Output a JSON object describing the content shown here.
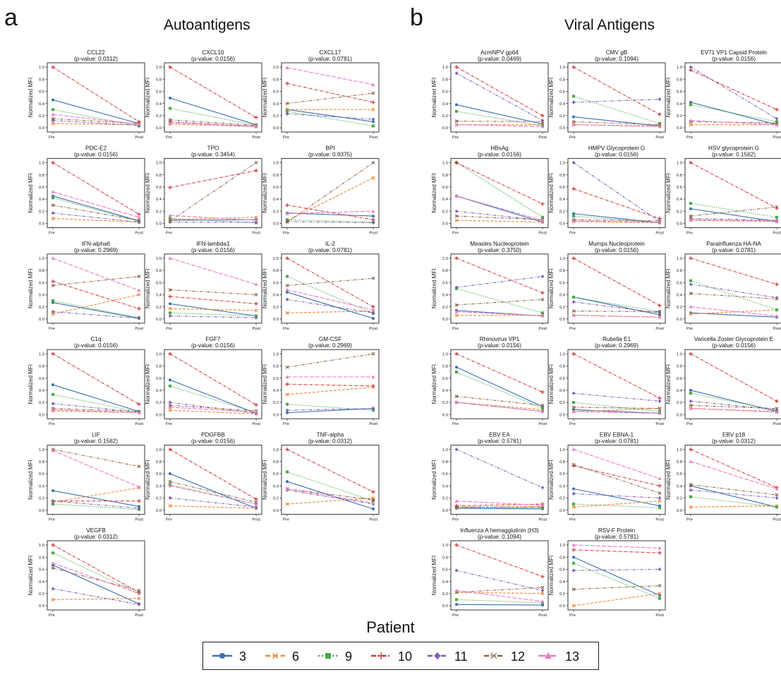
{
  "panels": [
    {
      "letter": "a",
      "title": "Autoantigens"
    },
    {
      "letter": "b",
      "title": "Viral Antigens"
    }
  ],
  "legend": {
    "title": "Patient",
    "entries": [
      {
        "label": "3",
        "color": "#3a6fb0",
        "dash": "solid",
        "marker": "circle"
      },
      {
        "label": "6",
        "color": "#f08a3c",
        "dash": "dashed",
        "marker": "x"
      },
      {
        "label": "9",
        "color": "#48a84a",
        "dash": "dotted",
        "marker": "square"
      },
      {
        "label": "10",
        "color": "#d0383a",
        "dash": "dashdot",
        "marker": "plus"
      },
      {
        "label": "11",
        "color": "#7b5db0",
        "dash": "dashdotdot",
        "marker": "diamond"
      },
      {
        "label": "12",
        "color": "#8a6548",
        "dash": "dashdotdot",
        "marker": "x"
      },
      {
        "label": "13",
        "color": "#e77cc3",
        "dash": "longdash",
        "marker": "triangle"
      }
    ]
  },
  "axis": {
    "ylabel": "Normalized MFI",
    "xticks": [
      "Pre",
      "Post"
    ],
    "yticks": [
      "0.0",
      "0.2",
      "0.4",
      "0.6",
      "0.8",
      "1.0"
    ],
    "ylim": [
      0,
      1
    ]
  },
  "chart_data": [
    {
      "type": "line",
      "group": "Autoantigens",
      "antigen": "CCL22",
      "pvalue": "(p-value: 0.0312)",
      "series": {
        "3": [
          0.46,
          0.07
        ],
        "6": [
          0.07,
          0.05
        ],
        "9": [
          0.3,
          0.03
        ],
        "10": [
          1.0,
          0.1
        ],
        "11": [
          0.12,
          0.04
        ],
        "12": [
          0.15,
          0.07
        ],
        "13": [
          0.22,
          0.06
        ]
      }
    },
    {
      "type": "line",
      "group": "Autoantigens",
      "antigen": "CXCL10",
      "pvalue": "(p-value: 0.0156)",
      "series": {
        "3": [
          0.49,
          0.05
        ],
        "6": [
          0.06,
          0.02
        ],
        "9": [
          0.32,
          0.04
        ],
        "10": [
          1.0,
          0.17
        ],
        "11": [
          0.1,
          0.02
        ],
        "12": [
          0.13,
          0.04
        ],
        "13": [
          0.08,
          0.03
        ]
      }
    },
    {
      "type": "line",
      "group": "Autoantigens",
      "antigen": "CXCL17",
      "pvalue": "(p-value: 0.0781)",
      "series": {
        "3": [
          0.3,
          0.1
        ],
        "6": [
          0.3,
          0.3
        ],
        "9": [
          0.27,
          0.03
        ],
        "10": [
          0.73,
          0.42
        ],
        "11": [
          0.23,
          0.14
        ],
        "12": [
          0.4,
          0.57
        ],
        "13": [
          0.99,
          0.71
        ]
      }
    },
    {
      "type": "line",
      "group": "Autoantigens",
      "antigen": "PDC-E2",
      "pvalue": "(p-value: 0.0156)",
      "series": {
        "3": [
          0.45,
          0.04
        ],
        "6": [
          0.08,
          0.02
        ],
        "9": [
          0.42,
          0.03
        ],
        "10": [
          1.0,
          0.15
        ],
        "11": [
          0.17,
          0.02
        ],
        "12": [
          0.3,
          0.05
        ],
        "13": [
          0.52,
          0.1
        ]
      }
    },
    {
      "type": "line",
      "group": "Autoantigens",
      "antigen": "TPO",
      "pvalue": "(p-value: 0.3454)",
      "series": {
        "3": [
          0.05,
          0.06
        ],
        "6": [
          0.06,
          0.1
        ],
        "9": [
          0.08,
          0.01
        ],
        "10": [
          0.59,
          0.87
        ],
        "11": [
          0.02,
          0.02
        ],
        "12": [
          0.04,
          1.0
        ],
        "13": [
          0.13,
          0.05
        ]
      }
    },
    {
      "type": "line",
      "group": "Autoantigens",
      "antigen": "BPI",
      "pvalue": "(p-value: 0.9375)",
      "series": {
        "3": [
          0.17,
          0.12
        ],
        "6": [
          0.04,
          0.75
        ],
        "9": [
          0.06,
          0.02
        ],
        "10": [
          0.3,
          0.06
        ],
        "11": [
          0.03,
          0.01
        ],
        "12": [
          0.02,
          1.0
        ],
        "13": [
          0.16,
          0.2
        ]
      }
    },
    {
      "type": "line",
      "group": "Autoantigens",
      "antigen": "IFN-alpha6",
      "pvalue": "(p-value: 0.2969)",
      "series": {
        "3": [
          0.27,
          0.01
        ],
        "6": [
          0.08,
          0.4
        ],
        "9": [
          0.3,
          0.02
        ],
        "10": [
          0.62,
          0.17
        ],
        "11": [
          0.12,
          0.01
        ],
        "12": [
          0.55,
          0.7
        ],
        "13": [
          1.0,
          0.47
        ]
      }
    },
    {
      "type": "line",
      "group": "Autoantigens",
      "antigen": "IFN-lambda1",
      "pvalue": "(p-value: 0.0156)",
      "series": {
        "3": [
          0.25,
          0.05
        ],
        "6": [
          0.17,
          0.14
        ],
        "9": [
          0.1,
          0.05
        ],
        "10": [
          0.37,
          0.25
        ],
        "11": [
          0.05,
          0.02
        ],
        "12": [
          0.48,
          0.4
        ],
        "13": [
          1.0,
          0.57
        ]
      }
    },
    {
      "type": "line",
      "group": "Autoantigens",
      "antigen": "IL-2",
      "pvalue": "(p-value: 0.0781)",
      "series": {
        "3": [
          0.44,
          0.01
        ],
        "6": [
          0.1,
          0.13
        ],
        "9": [
          0.7,
          0.09
        ],
        "10": [
          1.0,
          0.2
        ],
        "11": [
          0.32,
          0.1
        ],
        "12": [
          0.55,
          0.67
        ],
        "13": [
          0.48,
          0.15
        ]
      }
    },
    {
      "type": "line",
      "group": "Autoantigens",
      "antigen": "C1q",
      "pvalue": "(p-value: 0.0156)",
      "series": {
        "3": [
          0.49,
          0.05
        ],
        "6": [
          0.06,
          0.03
        ],
        "9": [
          0.33,
          0.04
        ],
        "10": [
          1.0,
          0.17
        ],
        "11": [
          0.18,
          0.04
        ],
        "12": [
          0.1,
          0.05
        ],
        "13": [
          0.08,
          0.03
        ]
      }
    },
    {
      "type": "line",
      "group": "Autoantigens",
      "antigen": "FGF7",
      "pvalue": "(p-value: 0.0156)",
      "series": {
        "3": [
          0.57,
          0.02
        ],
        "6": [
          0.07,
          0.01
        ],
        "9": [
          0.47,
          0.03
        ],
        "10": [
          1.0,
          0.16
        ],
        "11": [
          0.2,
          0.02
        ],
        "12": [
          0.15,
          0.06
        ],
        "13": [
          0.12,
          0.04
        ]
      }
    },
    {
      "type": "line",
      "group": "Autoantigens",
      "antigen": "GM-CSF",
      "pvalue": "(p-value: 0.2969)",
      "series": {
        "3": [
          0.03,
          0.1
        ],
        "6": [
          0.33,
          0.45
        ],
        "9": [
          0.17,
          0.07
        ],
        "10": [
          0.5,
          0.47
        ],
        "11": [
          0.07,
          0.1
        ],
        "12": [
          0.78,
          1.0
        ],
        "13": [
          0.62,
          0.62
        ]
      }
    },
    {
      "type": "line",
      "group": "Autoantigens",
      "antigen": "LIF",
      "pvalue": "(p-value: 0.1562)",
      "series": {
        "3": [
          0.32,
          0.06
        ],
        "6": [
          0.13,
          0.37
        ],
        "9": [
          0.1,
          0.01
        ],
        "10": [
          0.15,
          0.15
        ],
        "11": [
          0.15,
          0.03
        ],
        "12": [
          1.0,
          0.72
        ],
        "13": [
          0.98,
          0.38
        ]
      }
    },
    {
      "type": "line",
      "group": "Autoantigens",
      "antigen": "PDGFBB",
      "pvalue": "(p-value: 0.0156)",
      "series": {
        "3": [
          0.6,
          0.03
        ],
        "6": [
          0.07,
          0.03
        ],
        "9": [
          0.42,
          0.1
        ],
        "10": [
          1.0,
          0.18
        ],
        "11": [
          0.2,
          0.05
        ],
        "12": [
          0.47,
          0.13
        ],
        "13": [
          0.4,
          0.1
        ]
      }
    },
    {
      "type": "line",
      "group": "Autoantigens",
      "antigen": "TNF-alpha",
      "pvalue": "(p-value: 0.0312)",
      "series": {
        "3": [
          0.47,
          0.02
        ],
        "6": [
          0.1,
          0.2
        ],
        "9": [
          0.63,
          0.15
        ],
        "10": [
          1.0,
          0.3
        ],
        "11": [
          0.33,
          0.1
        ],
        "12": [
          0.35,
          0.17
        ],
        "13": [
          0.35,
          0.12
        ]
      }
    },
    {
      "type": "line",
      "group": "Autoantigens",
      "antigen": "VEGFB",
      "pvalue": "(p-value: 0.0312)",
      "series": {
        "3": [
          0.67,
          0.03
        ],
        "6": [
          0.1,
          0.12
        ],
        "9": [
          0.87,
          0.2
        ],
        "10": [
          1.0,
          0.22
        ],
        "11": [
          0.28,
          0.02
        ],
        "12": [
          0.62,
          0.25
        ],
        "13": [
          0.7,
          0.2
        ]
      }
    },
    {
      "type": "line",
      "group": "Viral Antigens",
      "antigen": "AcmNPV gp64",
      "pvalue": "(p-value: 0.0469)",
      "series": {
        "3": [
          0.38,
          0.06
        ],
        "6": [
          0.05,
          0.05
        ],
        "9": [
          0.27,
          0.03
        ],
        "10": [
          1.0,
          0.2
        ],
        "11": [
          0.9,
          0.12
        ],
        "12": [
          0.11,
          0.1
        ],
        "13": [
          0.05,
          0.02
        ]
      }
    },
    {
      "type": "line",
      "group": "Viral Antigens",
      "antigen": "CMV gB",
      "pvalue": "(p-value: 0.1094)",
      "series": {
        "3": [
          0.18,
          0.03
        ],
        "6": [
          0.05,
          0.03
        ],
        "9": [
          0.52,
          0.07
        ],
        "10": [
          1.0,
          0.22
        ],
        "11": [
          0.42,
          0.47
        ],
        "12": [
          0.1,
          0.05
        ],
        "13": [
          0.05,
          0.02
        ]
      }
    },
    {
      "type": "line",
      "group": "Viral Antigens",
      "antigen": "EV71 VP1 Capsid Protein",
      "pvalue": "(p-value: 0.0156)",
      "series": {
        "3": [
          0.42,
          0.05
        ],
        "6": [
          0.05,
          0.05
        ],
        "9": [
          0.38,
          0.1
        ],
        "10": [
          0.95,
          0.3
        ],
        "11": [
          1.0,
          0.15
        ],
        "12": [
          0.1,
          0.08
        ],
        "13": [
          0.12,
          0.05
        ]
      }
    },
    {
      "type": "line",
      "group": "Viral Antigens",
      "antigen": "HBsAg",
      "pvalue": "(p-value: 0.0156)",
      "series": {
        "3": [
          0.45,
          0.02
        ],
        "6": [
          0.05,
          0.02
        ],
        "9": [
          1.0,
          0.1
        ],
        "10": [
          1.0,
          0.32
        ],
        "11": [
          0.2,
          0.05
        ],
        "12": [
          0.12,
          0.06
        ],
        "13": [
          0.45,
          0.05
        ]
      }
    },
    {
      "type": "line",
      "group": "Viral Antigens",
      "antigen": "HMPV Glycoprotein G",
      "pvalue": "(p-value: 0.0156)",
      "series": {
        "3": [
          0.16,
          0.01
        ],
        "6": [
          0.03,
          0.01
        ],
        "9": [
          0.12,
          0.01
        ],
        "10": [
          0.57,
          0.08
        ],
        "11": [
          1.0,
          0.03
        ],
        "12": [
          0.06,
          0.04
        ],
        "13": [
          0.04,
          0.02
        ]
      }
    },
    {
      "type": "line",
      "group": "Viral Antigens",
      "antigen": "HSV glycoprotein G",
      "pvalue": "(p-value: 0.1562)",
      "series": {
        "3": [
          0.24,
          0.03
        ],
        "6": [
          0.05,
          0.03
        ],
        "9": [
          0.33,
          0.1
        ],
        "10": [
          1.0,
          0.25
        ],
        "11": [
          0.08,
          0.05
        ],
        "12": [
          0.12,
          0.27
        ],
        "13": [
          0.06,
          0.04
        ]
      }
    },
    {
      "type": "line",
      "group": "Viral Antigens",
      "antigen": "Measles Nucleoprotein",
      "pvalue": "(p-value: 0.3750)",
      "series": {
        "3": [
          0.14,
          0.05
        ],
        "6": [
          0.06,
          0.06
        ],
        "9": [
          0.5,
          0.1
        ],
        "10": [
          1.0,
          0.43
        ],
        "11": [
          0.52,
          0.7
        ],
        "12": [
          0.23,
          0.32
        ],
        "13": [
          0.12,
          0.05
        ]
      }
    },
    {
      "type": "line",
      "group": "Viral Antigens",
      "antigen": "Mumps Nucleoprotein",
      "pvalue": "(p-value: 0.0156)",
      "series": {
        "3": [
          0.36,
          0.07
        ],
        "6": [
          0.06,
          0.03
        ],
        "9": [
          0.36,
          0.12
        ],
        "10": [
          1.0,
          0.22
        ],
        "11": [
          0.28,
          0.1
        ],
        "12": [
          0.13,
          0.12
        ],
        "13": [
          0.06,
          0.03
        ]
      }
    },
    {
      "type": "line",
      "group": "Viral Antigens",
      "antigen": "Parainfluenza HA-NA",
      "pvalue": "(p-value: 0.0781)",
      "series": {
        "3": [
          0.1,
          0.03
        ],
        "6": [
          0.08,
          0.15
        ],
        "9": [
          0.63,
          0.15
        ],
        "10": [
          1.0,
          0.57
        ],
        "11": [
          0.57,
          0.35
        ],
        "12": [
          0.42,
          0.33
        ],
        "13": [
          0.2,
          0.05
        ]
      }
    },
    {
      "type": "line",
      "group": "Viral Antigens",
      "antigen": "Rhinovirus VP1",
      "pvalue": "(p-value: 0.0156)",
      "series": {
        "3": [
          0.78,
          0.13
        ],
        "6": [
          0.2,
          0.08
        ],
        "9": [
          0.7,
          0.1
        ],
        "10": [
          1.0,
          0.37
        ],
        "11": [
          0.2,
          0.05
        ],
        "12": [
          0.3,
          0.15
        ],
        "13": [
          0.2,
          0.05
        ]
      }
    },
    {
      "type": "line",
      "group": "Viral Antigens",
      "antigen": "Rubella E1",
      "pvalue": "(p-value: 0.2969)",
      "series": {
        "3": [
          0.08,
          0.02
        ],
        "6": [
          0.05,
          0.1
        ],
        "9": [
          0.2,
          0.05
        ],
        "10": [
          1.0,
          0.27
        ],
        "11": [
          0.35,
          0.22
        ],
        "12": [
          0.12,
          0.1
        ],
        "13": [
          0.05,
          0.02
        ]
      }
    },
    {
      "type": "line",
      "group": "Viral Antigens",
      "antigen": "Varicella Zoster Glycoprotein E",
      "pvalue": "(p-value: 0.0156)",
      "series": {
        "3": [
          0.4,
          0.05
        ],
        "6": [
          0.1,
          0.05
        ],
        "9": [
          0.35,
          0.07
        ],
        "10": [
          1.0,
          0.22
        ],
        "11": [
          0.22,
          0.08
        ],
        "12": [
          0.15,
          0.1
        ],
        "13": [
          0.1,
          0.04
        ]
      }
    },
    {
      "type": "line",
      "group": "Viral Antigens",
      "antigen": "EBV EA",
      "pvalue": "(p-value: 0.5781)",
      "series": {
        "3": [
          0.03,
          0.02
        ],
        "6": [
          0.04,
          0.06
        ],
        "9": [
          0.05,
          0.03
        ],
        "10": [
          0.07,
          0.1
        ],
        "11": [
          1.0,
          0.37
        ],
        "12": [
          0.05,
          0.05
        ],
        "13": [
          0.15,
          0.08
        ]
      }
    },
    {
      "type": "line",
      "group": "Viral Antigens",
      "antigen": "EBV EBNA-1",
      "pvalue": "(p-value: 0.0781)",
      "series": {
        "3": [
          0.35,
          0.07
        ],
        "6": [
          0.05,
          0.15
        ],
        "9": [
          0.1,
          0.04
        ],
        "10": [
          0.73,
          0.4
        ],
        "11": [
          0.27,
          0.2
        ],
        "12": [
          0.75,
          0.28
        ],
        "13": [
          1.0,
          0.52
        ]
      }
    },
    {
      "type": "line",
      "group": "Viral Antigens",
      "antigen": "EBV p18",
      "pvalue": "(p-value: 0.0312)",
      "series": {
        "3": [
          0.4,
          0.05
        ],
        "6": [
          0.05,
          0.07
        ],
        "9": [
          0.22,
          0.05
        ],
        "10": [
          1.0,
          0.37
        ],
        "11": [
          0.33,
          0.2
        ],
        "12": [
          0.42,
          0.25
        ],
        "13": [
          0.8,
          0.35
        ]
      }
    },
    {
      "type": "line",
      "group": "Viral Antigens",
      "antigen": "Influenza A hemagglutinin (H3)",
      "pvalue": "(p-value: 0.1094)",
      "series": {
        "3": [
          0.02,
          0.01
        ],
        "6": [
          0.22,
          0.2
        ],
        "9": [
          0.1,
          0.05
        ],
        "10": [
          1.0,
          0.48
        ],
        "11": [
          0.58,
          0.25
        ],
        "12": [
          0.22,
          0.3
        ],
        "13": [
          0.25,
          0.07
        ]
      }
    },
    {
      "type": "line",
      "group": "Viral Antigens",
      "antigen": "RSV-F Protein",
      "pvalue": "(p-value: 0.5781)",
      "series": {
        "3": [
          0.8,
          0.17
        ],
        "6": [
          0.0,
          0.2
        ],
        "9": [
          0.7,
          0.12
        ],
        "10": [
          0.92,
          0.87
        ],
        "11": [
          0.58,
          0.6
        ],
        "12": [
          0.27,
          0.33
        ],
        "13": [
          1.0,
          0.95
        ]
      }
    }
  ]
}
